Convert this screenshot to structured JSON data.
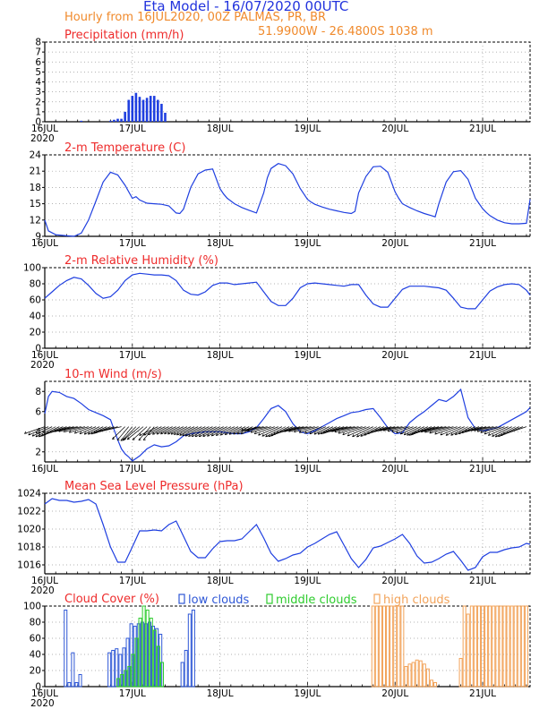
{
  "header": {
    "title": "Eta Model - 16/07/2020 00UTC",
    "subtitle": "Hourly from 16JUL2020, 00Z  PALMAS, PR, BR",
    "coords": "51.9900W - 26.4800S    1038  m"
  },
  "colors": {
    "series": "#1f3fe0",
    "panel_title": "#ee2b2b",
    "low_clouds": "#2e57d6",
    "middle_clouds": "#2ecc2e",
    "high_clouds": "#f2a35a",
    "arrows": "#000000"
  },
  "chart_data": [
    {
      "id": "precip",
      "type": "bar",
      "title": "Precipitation (mm/h)",
      "x_ticks": [
        "16JUL",
        "17JUL",
        "18JUL",
        "19JUL",
        "20JUL",
        "21JUL"
      ],
      "x_year": "2020",
      "ylim": [
        0,
        8
      ],
      "y_ticks": [
        "0",
        "1",
        "2",
        "3",
        "4",
        "5",
        "6",
        "7",
        "8"
      ],
      "x_hours": [
        10,
        18,
        19,
        20,
        21,
        22,
        23,
        24,
        25,
        26,
        27,
        28,
        29,
        30,
        31,
        32,
        33
      ],
      "values": [
        0.1,
        0.1,
        0.2,
        0.3,
        0.3,
        1.0,
        2.2,
        2.6,
        2.9,
        2.5,
        2.2,
        2.4,
        2.6,
        2.6,
        2.2,
        1.8,
        0.9
      ]
    },
    {
      "id": "temp",
      "type": "line",
      "title": "2-m Temperature (C)",
      "x_ticks": [
        "16JUL",
        "17JUL",
        "18JUL",
        "19JUL",
        "20JUL",
        "21JUL"
      ],
      "x_year": "2020",
      "ylim": [
        9,
        24
      ],
      "y_ticks": [
        "9",
        "12",
        "15",
        "18",
        "21",
        "24"
      ],
      "x": [
        0,
        1,
        3,
        6,
        8,
        10,
        12,
        14,
        16,
        18,
        20,
        22,
        24,
        25,
        26,
        28,
        30,
        32,
        34,
        36,
        37,
        38,
        40,
        42,
        44,
        46,
        48,
        49,
        50,
        52,
        54,
        56,
        58,
        60,
        61,
        62,
        64,
        66,
        68,
        70,
        72,
        73,
        74,
        76,
        78,
        80,
        82,
        84,
        85,
        86,
        88,
        90,
        92,
        94,
        96,
        97,
        98,
        100,
        102,
        104,
        106,
        107,
        108,
        110,
        112,
        114,
        116,
        118,
        120,
        121,
        122,
        124,
        126,
        128,
        130,
        132,
        133
      ],
      "series": [
        {
          "name": "2-m Temperature",
          "values": [
            12.0,
            10.0,
            9.3,
            9.1,
            9.0,
            9.6,
            12.0,
            15.5,
            19.0,
            20.8,
            20.3,
            18.4,
            16.0,
            16.3,
            15.7,
            15.1,
            15.0,
            14.9,
            14.6,
            13.3,
            13.2,
            14.0,
            18.0,
            20.5,
            21.2,
            21.4,
            17.8,
            16.8,
            16.0,
            15.0,
            14.3,
            13.8,
            13.3,
            17.0,
            19.8,
            21.5,
            22.4,
            22.0,
            20.5,
            17.8,
            15.8,
            15.3,
            14.9,
            14.4,
            14.0,
            13.7,
            13.4,
            13.2,
            13.6,
            17.0,
            20.0,
            21.8,
            21.9,
            20.8,
            17.2,
            16.0,
            15.0,
            14.3,
            13.7,
            13.2,
            12.8,
            12.6,
            15.0,
            19.0,
            20.9,
            21.1,
            19.5,
            16.0,
            14.1,
            13.4,
            12.8,
            12.0,
            11.5,
            11.3,
            11.3,
            11.4,
            15.8
          ]
        }
      ]
    },
    {
      "id": "rh",
      "type": "line",
      "title": "2-m Relative Humidity (%)",
      "x_ticks": [
        "16JUL",
        "17JUL",
        "18JUL",
        "19JUL",
        "20JUL",
        "21JUL"
      ],
      "x_year": "2020",
      "ylim": [
        0,
        100
      ],
      "y_ticks": [
        "0",
        "20",
        "40",
        "60",
        "80",
        "100"
      ],
      "x": [
        0,
        2,
        4,
        6,
        8,
        10,
        12,
        14,
        16,
        18,
        20,
        22,
        24,
        26,
        28,
        30,
        32,
        34,
        36,
        38,
        40,
        42,
        44,
        46,
        48,
        50,
        52,
        54,
        56,
        58,
        60,
        62,
        64,
        66,
        68,
        70,
        72,
        74,
        76,
        78,
        80,
        82,
        84,
        86,
        88,
        90,
        92,
        94,
        96,
        98,
        100,
        102,
        104,
        106,
        108,
        110,
        112,
        114,
        116,
        118,
        120,
        122,
        124,
        126,
        128,
        130,
        132,
        133
      ],
      "series": [
        {
          "name": "2-m Relative Humidity",
          "values": [
            62,
            70,
            78,
            84,
            88,
            86,
            78,
            68,
            62,
            64,
            72,
            84,
            91,
            93,
            92,
            91,
            91,
            90,
            84,
            72,
            67,
            66,
            70,
            78,
            81,
            81,
            79,
            80,
            81,
            82,
            70,
            58,
            53,
            53,
            62,
            75,
            80,
            81,
            80,
            79,
            78,
            77,
            79,
            79,
            66,
            55,
            51,
            51,
            62,
            73,
            77,
            77,
            77,
            76,
            75,
            72,
            62,
            51,
            49,
            49,
            60,
            71,
            76,
            79,
            80,
            79,
            72,
            66
          ]
        }
      ]
    },
    {
      "id": "wind",
      "type": "line",
      "title": "10-m Wind (m/s)",
      "x_ticks": [
        "16JUL",
        "17JUL",
        "18JUL",
        "19JUL",
        "20JUL",
        "21JUL"
      ],
      "x_year": "2020",
      "ylim": [
        1,
        9
      ],
      "y_ticks": [
        "2",
        "4",
        "6",
        "8"
      ],
      "x": [
        0,
        1,
        2,
        4,
        6,
        8,
        10,
        12,
        14,
        16,
        18,
        19,
        20,
        21,
        22,
        23,
        24,
        26,
        28,
        30,
        32,
        34,
        36,
        38,
        40,
        42,
        44,
        46,
        48,
        50,
        52,
        54,
        56,
        58,
        60,
        62,
        64,
        66,
        68,
        70,
        72,
        74,
        76,
        78,
        80,
        82,
        84,
        86,
        88,
        90,
        92,
        94,
        96,
        98,
        100,
        102,
        104,
        106,
        108,
        110,
        112,
        114,
        116,
        118,
        120,
        122,
        124,
        126,
        128,
        130,
        132,
        133
      ],
      "series": [
        {
          "name": "10-m Wind speed",
          "values": [
            5.8,
            7.5,
            8.0,
            7.9,
            7.5,
            7.3,
            6.8,
            6.2,
            5.9,
            5.6,
            5.2,
            4.2,
            3.2,
            2.3,
            1.8,
            1.5,
            1.1,
            1.6,
            2.3,
            2.7,
            2.5,
            2.6,
            3.0,
            3.6,
            3.8,
            3.9,
            4.0,
            4.0,
            4.0,
            3.9,
            3.8,
            3.8,
            4.0,
            4.4,
            5.3,
            6.3,
            6.6,
            6.0,
            4.8,
            4.0,
            3.8,
            4.1,
            4.5,
            4.9,
            5.3,
            5.6,
            5.9,
            6.0,
            6.2,
            6.3,
            5.4,
            4.4,
            3.8,
            3.9,
            4.9,
            5.5,
            6.0,
            6.6,
            7.2,
            7.0,
            7.5,
            8.2,
            5.4,
            4.3,
            4.1,
            4.2,
            4.4,
            4.8,
            5.2,
            5.6,
            6.0,
            6.4
          ]
        }
      ]
    },
    {
      "id": "mslp",
      "type": "line",
      "title": "Mean Sea Level Pressure (hPa)",
      "x_ticks": [
        "16JUL",
        "17JUL",
        "18JUL",
        "19JUL",
        "20JUL",
        "21JUL"
      ],
      "x_year": "2020",
      "ylim": [
        1015,
        1024
      ],
      "y_ticks": [
        "1016",
        "1018",
        "1020",
        "1022",
        "1024"
      ],
      "x": [
        0,
        2,
        4,
        6,
        8,
        10,
        12,
        14,
        16,
        18,
        20,
        22,
        24,
        26,
        28,
        30,
        32,
        34,
        36,
        38,
        40,
        42,
        44,
        46,
        48,
        50,
        52,
        54,
        56,
        58,
        60,
        62,
        64,
        66,
        68,
        70,
        72,
        74,
        76,
        78,
        80,
        82,
        84,
        86,
        88,
        90,
        92,
        94,
        96,
        98,
        100,
        102,
        104,
        106,
        108,
        110,
        112,
        114,
        116,
        118,
        120,
        122,
        124,
        126,
        128,
        130,
        132,
        133
      ],
      "series": [
        {
          "name": "Mean Sea Level Pressure",
          "values": [
            1022.8,
            1023.4,
            1023.2,
            1023.2,
            1023.0,
            1023.1,
            1023.3,
            1022.8,
            1020.5,
            1018.0,
            1016.3,
            1016.3,
            1018.0,
            1019.8,
            1019.8,
            1019.9,
            1019.8,
            1020.5,
            1020.9,
            1019.2,
            1017.5,
            1016.8,
            1016.8,
            1017.8,
            1018.6,
            1018.7,
            1018.7,
            1018.9,
            1019.7,
            1020.5,
            1019.0,
            1017.3,
            1016.4,
            1016.7,
            1017.1,
            1017.3,
            1018.0,
            1018.4,
            1018.9,
            1019.4,
            1019.7,
            1018.2,
            1016.7,
            1015.7,
            1016.6,
            1017.9,
            1018.1,
            1018.5,
            1018.9,
            1019.4,
            1018.4,
            1017.0,
            1016.2,
            1016.3,
            1016.7,
            1017.2,
            1017.5,
            1016.5,
            1015.4,
            1015.7,
            1016.9,
            1017.4,
            1017.4,
            1017.7,
            1017.9,
            1018.0,
            1018.4,
            1018.3
          ]
        }
      ]
    },
    {
      "id": "clouds",
      "type": "bar",
      "title": "Cloud Cover (%)",
      "legend": [
        "low clouds",
        "middle clouds",
        "high clouds"
      ],
      "x_ticks": [
        "16JUL",
        "17JUL",
        "18JUL",
        "19JUL",
        "20JUL",
        "21JUL"
      ],
      "x_year": "2020",
      "ylim": [
        0,
        100
      ],
      "y_ticks": [
        "0",
        "20",
        "40",
        "60",
        "80",
        "100"
      ],
      "series": [
        {
          "name": "low clouds",
          "x_hours": [
            6,
            7,
            8,
            9,
            10,
            11,
            12,
            13,
            14,
            15,
            16,
            17,
            18,
            19,
            20,
            21,
            22,
            23,
            24,
            25,
            26,
            27,
            28,
            29,
            30,
            31,
            32,
            38,
            39,
            40,
            41
          ],
          "values": [
            95,
            5,
            42,
            5,
            15,
            0,
            0,
            0,
            0,
            0,
            0,
            0,
            42,
            45,
            47,
            40,
            48,
            60,
            78,
            75,
            78,
            80,
            78,
            80,
            75,
            72,
            65,
            30,
            45,
            90,
            95
          ]
        },
        {
          "name": "middle clouds",
          "x_hours": [
            20,
            21,
            22,
            23,
            24,
            25,
            26,
            27,
            28,
            29,
            30,
            31,
            32
          ],
          "values": [
            10,
            15,
            20,
            25,
            40,
            60,
            85,
            100,
            95,
            85,
            70,
            50,
            30
          ]
        },
        {
          "name": "high clouds",
          "x_hours": [
            90,
            91,
            92,
            93,
            94,
            95,
            96,
            97,
            98,
            99,
            100,
            101,
            102,
            103,
            104,
            105,
            106,
            107,
            114,
            115,
            116,
            117,
            118,
            119,
            120,
            121,
            122,
            123,
            124,
            125,
            126,
            127,
            128,
            129,
            130,
            131,
            132
          ],
          "values": [
            100,
            100,
            100,
            100,
            100,
            100,
            100,
            100,
            100,
            25,
            28,
            30,
            33,
            32,
            28,
            22,
            8,
            5,
            35,
            100,
            90,
            100,
            100,
            100,
            100,
            100,
            100,
            100,
            100,
            100,
            100,
            100,
            100,
            100,
            100,
            100,
            100
          ]
        }
      ]
    }
  ]
}
